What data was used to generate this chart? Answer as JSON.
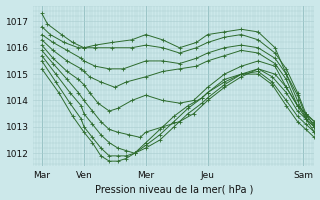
{
  "xlabel": "Pression niveau de la mer( hPa )",
  "bg_color": "#cce8ea",
  "line_color": "#2d6b2d",
  "grid_color": "#aacdd0",
  "ylim": [
    1011.5,
    1017.6
  ],
  "yticks": [
    1012,
    1013,
    1014,
    1015,
    1016,
    1017
  ],
  "xtick_labels": [
    "Mar",
    "Ven",
    "Mer",
    "Jeu",
    "Sam"
  ],
  "xtick_pos": [
    0.03,
    0.18,
    0.4,
    0.62,
    0.96
  ],
  "lines": [
    {
      "x": [
        0.03,
        0.05,
        0.1,
        0.14,
        0.18,
        0.22,
        0.28,
        0.35,
        0.4,
        0.46,
        0.52,
        0.58,
        0.62,
        0.68,
        0.74,
        0.8,
        0.86,
        0.9,
        0.94,
        0.97,
        1.0
      ],
      "y": [
        1017.3,
        1016.9,
        1016.5,
        1016.2,
        1016.0,
        1016.1,
        1016.2,
        1016.3,
        1016.5,
        1016.3,
        1016.0,
        1016.2,
        1016.5,
        1016.6,
        1016.7,
        1016.6,
        1016.0,
        1015.0,
        1014.0,
        1013.3,
        1012.8
      ]
    },
    {
      "x": [
        0.03,
        0.06,
        0.11,
        0.16,
        0.18,
        0.22,
        0.28,
        0.35,
        0.4,
        0.46,
        0.52,
        0.58,
        0.62,
        0.68,
        0.74,
        0.8,
        0.86,
        0.9,
        0.94,
        0.97,
        1.0
      ],
      "y": [
        1016.8,
        1016.5,
        1016.2,
        1016.0,
        1016.0,
        1016.0,
        1016.0,
        1016.0,
        1016.1,
        1016.0,
        1015.8,
        1016.0,
        1016.2,
        1016.4,
        1016.5,
        1016.3,
        1015.8,
        1015.2,
        1014.3,
        1013.5,
        1013.0
      ]
    },
    {
      "x": [
        0.03,
        0.07,
        0.12,
        0.17,
        0.18,
        0.22,
        0.27,
        0.32,
        0.4,
        0.46,
        0.52,
        0.58,
        0.62,
        0.68,
        0.74,
        0.8,
        0.86,
        0.9,
        0.94,
        0.97,
        1.0
      ],
      "y": [
        1016.5,
        1016.2,
        1015.9,
        1015.6,
        1015.5,
        1015.3,
        1015.2,
        1015.2,
        1015.5,
        1015.5,
        1015.4,
        1015.6,
        1015.8,
        1016.0,
        1016.1,
        1016.0,
        1015.6,
        1015.0,
        1014.2,
        1013.4,
        1013.1
      ]
    },
    {
      "x": [
        0.03,
        0.07,
        0.12,
        0.17,
        0.18,
        0.2,
        0.24,
        0.29,
        0.33,
        0.4,
        0.46,
        0.52,
        0.58,
        0.62,
        0.68,
        0.74,
        0.8,
        0.86,
        0.9,
        0.94,
        0.97,
        1.0
      ],
      "y": [
        1016.3,
        1015.9,
        1015.5,
        1015.2,
        1015.1,
        1014.9,
        1014.7,
        1014.5,
        1014.7,
        1014.9,
        1015.1,
        1015.2,
        1015.3,
        1015.5,
        1015.7,
        1015.9,
        1015.8,
        1015.4,
        1014.8,
        1013.8,
        1013.3,
        1013.0
      ]
    },
    {
      "x": [
        0.03,
        0.07,
        0.12,
        0.16,
        0.18,
        0.2,
        0.23,
        0.27,
        0.3,
        0.35,
        0.4,
        0.46,
        0.52,
        0.57,
        0.62,
        0.68,
        0.74,
        0.8,
        0.86,
        0.9,
        0.94,
        0.97,
        1.0
      ],
      "y": [
        1016.1,
        1015.6,
        1015.1,
        1014.8,
        1014.6,
        1014.3,
        1013.9,
        1013.6,
        1013.7,
        1014.0,
        1014.2,
        1014.0,
        1013.9,
        1014.0,
        1014.5,
        1015.0,
        1015.3,
        1015.5,
        1015.3,
        1014.5,
        1013.8,
        1013.5,
        1013.2
      ]
    },
    {
      "x": [
        0.03,
        0.07,
        0.12,
        0.16,
        0.18,
        0.21,
        0.24,
        0.27,
        0.3,
        0.34,
        0.38,
        0.4,
        0.46,
        0.52,
        0.57,
        0.62,
        0.68,
        0.74,
        0.8,
        0.86,
        0.9,
        0.94,
        0.97,
        1.0
      ],
      "y": [
        1015.9,
        1015.4,
        1014.8,
        1014.3,
        1014.0,
        1013.6,
        1013.2,
        1012.9,
        1012.8,
        1012.7,
        1012.6,
        1012.8,
        1013.0,
        1013.2,
        1013.5,
        1014.0,
        1014.5,
        1014.9,
        1015.2,
        1015.0,
        1014.5,
        1013.8,
        1013.5,
        1013.2
      ]
    },
    {
      "x": [
        0.03,
        0.08,
        0.13,
        0.17,
        0.18,
        0.21,
        0.24,
        0.27,
        0.3,
        0.33,
        0.36,
        0.4,
        0.45,
        0.5,
        0.55,
        0.6,
        0.62,
        0.68,
        0.74,
        0.8,
        0.85,
        0.9,
        0.94,
        0.97,
        1.0
      ],
      "y": [
        1015.7,
        1015.0,
        1014.3,
        1013.8,
        1013.5,
        1013.1,
        1012.7,
        1012.4,
        1012.2,
        1012.1,
        1012.0,
        1012.2,
        1012.5,
        1013.0,
        1013.5,
        1013.9,
        1014.1,
        1014.6,
        1015.0,
        1015.2,
        1014.9,
        1014.3,
        1013.6,
        1013.3,
        1013.0
      ]
    },
    {
      "x": [
        0.03,
        0.08,
        0.13,
        0.17,
        0.18,
        0.21,
        0.24,
        0.27,
        0.3,
        0.33,
        0.36,
        0.4,
        0.45,
        0.5,
        0.55,
        0.6,
        0.62,
        0.68,
        0.74,
        0.8,
        0.85,
        0.9,
        0.94,
        0.97,
        1.0
      ],
      "y": [
        1015.5,
        1014.7,
        1013.9,
        1013.3,
        1013.0,
        1012.6,
        1012.2,
        1011.9,
        1011.9,
        1011.9,
        1012.0,
        1012.3,
        1012.7,
        1013.2,
        1013.7,
        1014.1,
        1014.3,
        1014.8,
        1015.0,
        1015.1,
        1014.7,
        1014.0,
        1013.4,
        1013.1,
        1012.8
      ]
    },
    {
      "x": [
        0.03,
        0.09,
        0.14,
        0.18,
        0.21,
        0.24,
        0.27,
        0.3,
        0.33,
        0.36,
        0.4,
        0.45,
        0.5,
        0.55,
        0.6,
        0.62,
        0.68,
        0.74,
        0.8,
        0.85,
        0.9,
        0.94,
        0.97,
        1.0
      ],
      "y": [
        1015.2,
        1014.3,
        1013.4,
        1012.8,
        1012.4,
        1011.9,
        1011.7,
        1011.7,
        1011.8,
        1012.0,
        1012.4,
        1012.9,
        1013.4,
        1013.8,
        1014.1,
        1014.3,
        1014.7,
        1015.0,
        1015.0,
        1014.6,
        1013.8,
        1013.2,
        1012.9,
        1012.6
      ]
    }
  ]
}
